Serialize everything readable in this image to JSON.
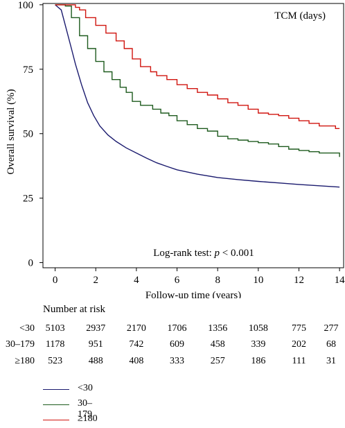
{
  "chart_data": {
    "type": "line",
    "title": "",
    "annotation_top_right": "TCM (days)",
    "annotation_test_prefix": "Log-rank test: ",
    "annotation_test_p": "p",
    "annotation_test_suffix": " < 0.001",
    "xlabel": "Follow-up time (years)",
    "ylabel": "Overall survival (%)",
    "xlim": [
      -0.6,
      14.2
    ],
    "ylim": [
      -2,
      100.5
    ],
    "xticks": [
      0,
      2,
      4,
      6,
      8,
      10,
      12,
      14
    ],
    "yticks": [
      0,
      25,
      50,
      75,
      100
    ],
    "grid": false,
    "series": [
      {
        "name": "<30",
        "color": "#1a1a6e",
        "step": false,
        "points": [
          [
            0,
            100
          ],
          [
            0.3,
            98
          ],
          [
            0.5,
            92
          ],
          [
            0.8,
            83
          ],
          [
            1.0,
            77
          ],
          [
            1.3,
            69
          ],
          [
            1.6,
            62
          ],
          [
            1.9,
            57
          ],
          [
            2.2,
            53
          ],
          [
            2.6,
            49.5
          ],
          [
            3.0,
            47
          ],
          [
            3.5,
            44.5
          ],
          [
            4.0,
            42.5
          ],
          [
            4.5,
            40.5
          ],
          [
            5.0,
            38.7
          ],
          [
            5.5,
            37.3
          ],
          [
            6.0,
            36
          ],
          [
            7.0,
            34.3
          ],
          [
            8.0,
            33
          ],
          [
            9.0,
            32.2
          ],
          [
            10.0,
            31.5
          ],
          [
            11.0,
            30.9
          ],
          [
            12.0,
            30.3
          ],
          [
            13.0,
            29.8
          ],
          [
            14.0,
            29.3
          ]
        ]
      },
      {
        "name": "30–179",
        "color": "#1d5a1d",
        "step": true,
        "points": [
          [
            0,
            100
          ],
          [
            0.5,
            99.5
          ],
          [
            0.8,
            95
          ],
          [
            1.2,
            88
          ],
          [
            1.6,
            83
          ],
          [
            2.0,
            78
          ],
          [
            2.4,
            74
          ],
          [
            2.8,
            71
          ],
          [
            3.2,
            68
          ],
          [
            3.5,
            66
          ],
          [
            3.8,
            62.5
          ],
          [
            4.2,
            61
          ],
          [
            4.8,
            59.5
          ],
          [
            5.2,
            58
          ],
          [
            5.6,
            57
          ],
          [
            6.0,
            55
          ],
          [
            6.5,
            53.5
          ],
          [
            7.0,
            52
          ],
          [
            7.5,
            51
          ],
          [
            8.0,
            49
          ],
          [
            8.5,
            48
          ],
          [
            9.0,
            47.5
          ],
          [
            9.5,
            47
          ],
          [
            10.0,
            46.5
          ],
          [
            10.5,
            46
          ],
          [
            11.0,
            45
          ],
          [
            11.5,
            44
          ],
          [
            12.0,
            43.5
          ],
          [
            12.5,
            43
          ],
          [
            13.0,
            42.5
          ],
          [
            13.5,
            42.5
          ],
          [
            13.9,
            42.5
          ],
          [
            14.0,
            41
          ]
        ]
      },
      {
        "name": "≥180",
        "color": "#d0140e",
        "step": true,
        "points": [
          [
            0,
            100
          ],
          [
            0.8,
            100
          ],
          [
            1.0,
            99
          ],
          [
            1.2,
            98
          ],
          [
            1.5,
            95
          ],
          [
            2.0,
            92
          ],
          [
            2.5,
            89
          ],
          [
            3.0,
            86
          ],
          [
            3.4,
            83
          ],
          [
            3.8,
            79
          ],
          [
            4.2,
            76
          ],
          [
            4.7,
            74
          ],
          [
            5.0,
            72.5
          ],
          [
            5.5,
            71
          ],
          [
            6.0,
            69
          ],
          [
            6.5,
            67.5
          ],
          [
            7.0,
            66
          ],
          [
            7.5,
            65
          ],
          [
            8.0,
            63.5
          ],
          [
            8.5,
            62
          ],
          [
            9.0,
            61
          ],
          [
            9.5,
            59.5
          ],
          [
            10.0,
            58
          ],
          [
            10.5,
            57.5
          ],
          [
            11.0,
            57
          ],
          [
            11.5,
            56
          ],
          [
            12.0,
            55
          ],
          [
            12.5,
            54
          ],
          [
            13.0,
            53
          ],
          [
            13.5,
            53
          ],
          [
            13.8,
            52
          ],
          [
            14.0,
            52
          ]
        ]
      }
    ]
  },
  "risk_table": {
    "header": "Number at risk",
    "times": [
      0,
      2,
      4,
      6,
      8,
      10,
      12,
      14
    ],
    "rows": [
      {
        "label": "<30",
        "values": [
          "5103",
          "2937",
          "2170",
          "1706",
          "1356",
          "1058",
          "775",
          "277"
        ]
      },
      {
        "label": "30–179",
        "values": [
          "1178",
          "951",
          "742",
          "609",
          "458",
          "339",
          "202",
          "68"
        ]
      },
      {
        "label": "≥180",
        "values": [
          "523",
          "488",
          "408",
          "333",
          "257",
          "186",
          "111",
          "31"
        ]
      }
    ]
  }
}
